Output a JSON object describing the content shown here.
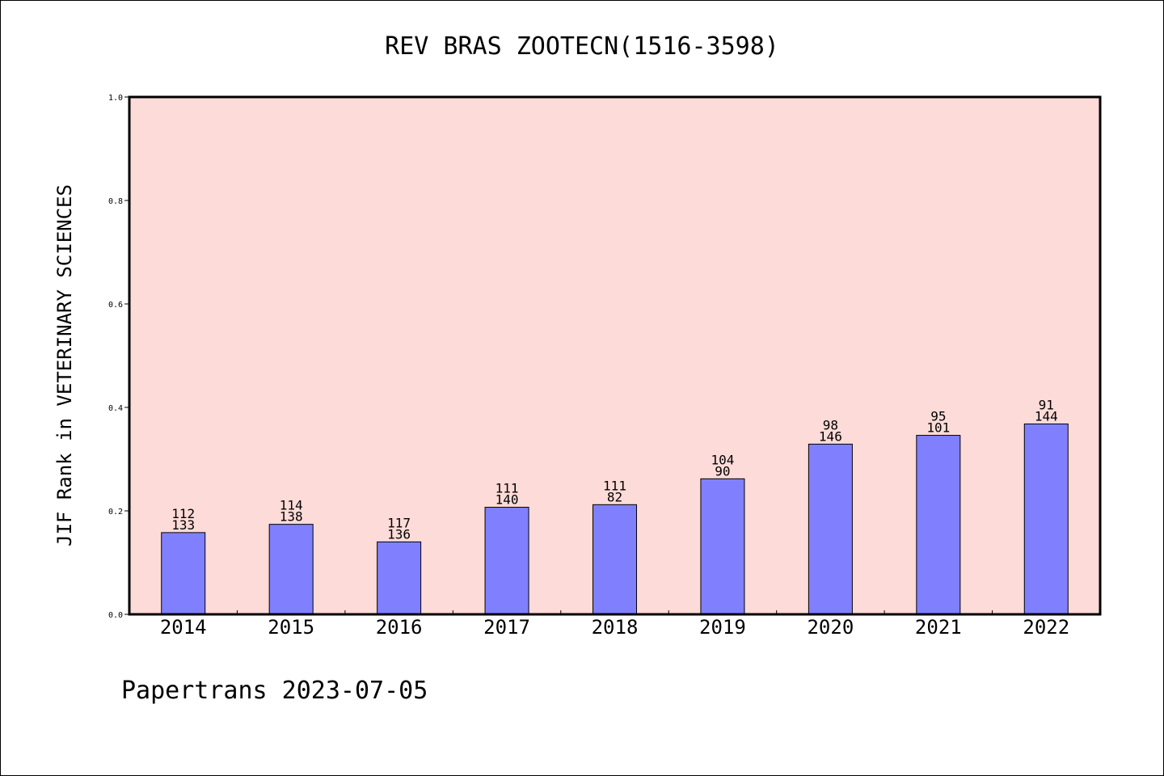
{
  "chart_data": {
    "type": "bar",
    "title": "REV BRAS ZOOTECN(1516-3598)",
    "xlabel": "",
    "ylabel": "JIF Rank in VETERINARY SCIENCES",
    "ylim": [
      0.0,
      1.0
    ],
    "yticks": [
      "0.0",
      "0.2",
      "0.4",
      "0.6",
      "0.8",
      "1.0"
    ],
    "categories": [
      "2014",
      "2015",
      "2016",
      "2017",
      "2018",
      "2019",
      "2020",
      "2021",
      "2022"
    ],
    "values": [
      0.158,
      0.174,
      0.14,
      0.207,
      0.212,
      0.262,
      0.329,
      0.346,
      0.368
    ],
    "labels_top": [
      "112",
      "114",
      "117",
      "111",
      "111",
      "104",
      "98",
      "95",
      "91"
    ],
    "labels_bottom": [
      "133",
      "138",
      "136",
      "140",
      "82",
      "90",
      "146",
      "101",
      "144"
    ],
    "grid": false,
    "colors": {
      "plot_background": "#fddbd8",
      "bar_fill": "#8080ff",
      "bar_stroke": "#000000"
    }
  },
  "footer": {
    "text": "Papertrans 2023-07-05"
  }
}
